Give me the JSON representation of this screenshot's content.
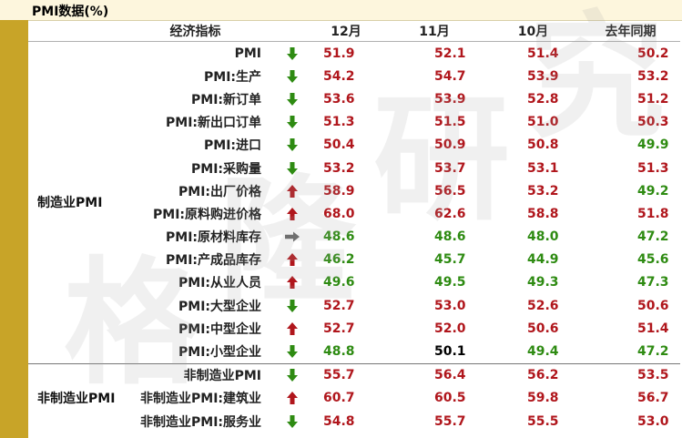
{
  "title": "PMI数据(%)",
  "watermark": "格隆研究",
  "colors": {
    "up": "#b0161c",
    "down": "#2e8b12",
    "gold": "#c8a428"
  },
  "headers": {
    "indicator": "经济指标",
    "c1": "12月",
    "c2": "11月",
    "c3": "10月",
    "c4": "去年同期"
  },
  "groups": [
    {
      "category": "制造业PMI",
      "rows": [
        {
          "name": "PMI",
          "arrow": "down",
          "values": [
            "51.9",
            "52.1",
            "51.4",
            "50.2"
          ],
          "colors": [
            "red",
            "red",
            "red",
            "red"
          ]
        },
        {
          "name": "PMI:生产",
          "arrow": "down",
          "values": [
            "54.2",
            "54.7",
            "53.9",
            "53.2"
          ],
          "colors": [
            "red",
            "red",
            "red",
            "red"
          ]
        },
        {
          "name": "PMI:新订单",
          "arrow": "down",
          "values": [
            "53.6",
            "53.9",
            "52.8",
            "51.2"
          ],
          "colors": [
            "red",
            "red",
            "red",
            "red"
          ]
        },
        {
          "name": "PMI:新出口订单",
          "arrow": "down",
          "values": [
            "51.3",
            "51.5",
            "51.0",
            "50.3"
          ],
          "colors": [
            "red",
            "red",
            "red",
            "red"
          ]
        },
        {
          "name": "PMI:进口",
          "arrow": "down",
          "values": [
            "50.4",
            "50.9",
            "50.8",
            "49.9"
          ],
          "colors": [
            "red",
            "red",
            "red",
            "green"
          ]
        },
        {
          "name": "PMI:采购量",
          "arrow": "down",
          "values": [
            "53.2",
            "53.7",
            "53.1",
            "51.3"
          ],
          "colors": [
            "red",
            "red",
            "red",
            "red"
          ]
        },
        {
          "name": "PMI:出厂价格",
          "arrow": "up",
          "values": [
            "58.9",
            "56.5",
            "53.2",
            "49.2"
          ],
          "colors": [
            "red",
            "red",
            "red",
            "green"
          ]
        },
        {
          "name": "PMI:原料购进价格",
          "arrow": "up",
          "values": [
            "68.0",
            "62.6",
            "58.8",
            "51.8"
          ],
          "colors": [
            "red",
            "red",
            "red",
            "red"
          ]
        },
        {
          "name": "PMI:原材料库存",
          "arrow": "flat",
          "values": [
            "48.6",
            "48.6",
            "48.0",
            "47.2"
          ],
          "colors": [
            "green",
            "green",
            "green",
            "green"
          ]
        },
        {
          "name": "PMI:产成品库存",
          "arrow": "up",
          "values": [
            "46.2",
            "45.7",
            "44.9",
            "45.6"
          ],
          "colors": [
            "green",
            "green",
            "green",
            "green"
          ]
        },
        {
          "name": "PMI:从业人员",
          "arrow": "up",
          "values": [
            "49.6",
            "49.5",
            "49.3",
            "47.3"
          ],
          "colors": [
            "green",
            "green",
            "green",
            "green"
          ]
        },
        {
          "name": "PMI:大型企业",
          "arrow": "down",
          "values": [
            "52.7",
            "53.0",
            "52.6",
            "50.6"
          ],
          "colors": [
            "red",
            "red",
            "red",
            "red"
          ]
        },
        {
          "name": "PMI:中型企业",
          "arrow": "up",
          "values": [
            "52.7",
            "52.0",
            "50.6",
            "51.4"
          ],
          "colors": [
            "red",
            "red",
            "red",
            "red"
          ]
        },
        {
          "name": "PMI:小型企业",
          "arrow": "down",
          "values": [
            "48.8",
            "50.1",
            "49.4",
            "47.2"
          ],
          "colors": [
            "green",
            "dark",
            "green",
            "green"
          ]
        }
      ]
    },
    {
      "category": "非制造业PMI",
      "rows": [
        {
          "name": "非制造业PMI",
          "arrow": "down",
          "values": [
            "55.7",
            "56.4",
            "56.2",
            "53.5"
          ],
          "colors": [
            "red",
            "red",
            "red",
            "red"
          ]
        },
        {
          "name": "非制造业PMI:建筑业",
          "arrow": "up",
          "values": [
            "60.7",
            "60.5",
            "59.8",
            "56.7"
          ],
          "colors": [
            "red",
            "red",
            "red",
            "red"
          ]
        },
        {
          "name": "非制造业PMI:服务业",
          "arrow": "down",
          "values": [
            "54.8",
            "55.7",
            "55.5",
            "53.0"
          ],
          "colors": [
            "red",
            "red",
            "red",
            "red"
          ]
        }
      ]
    }
  ]
}
